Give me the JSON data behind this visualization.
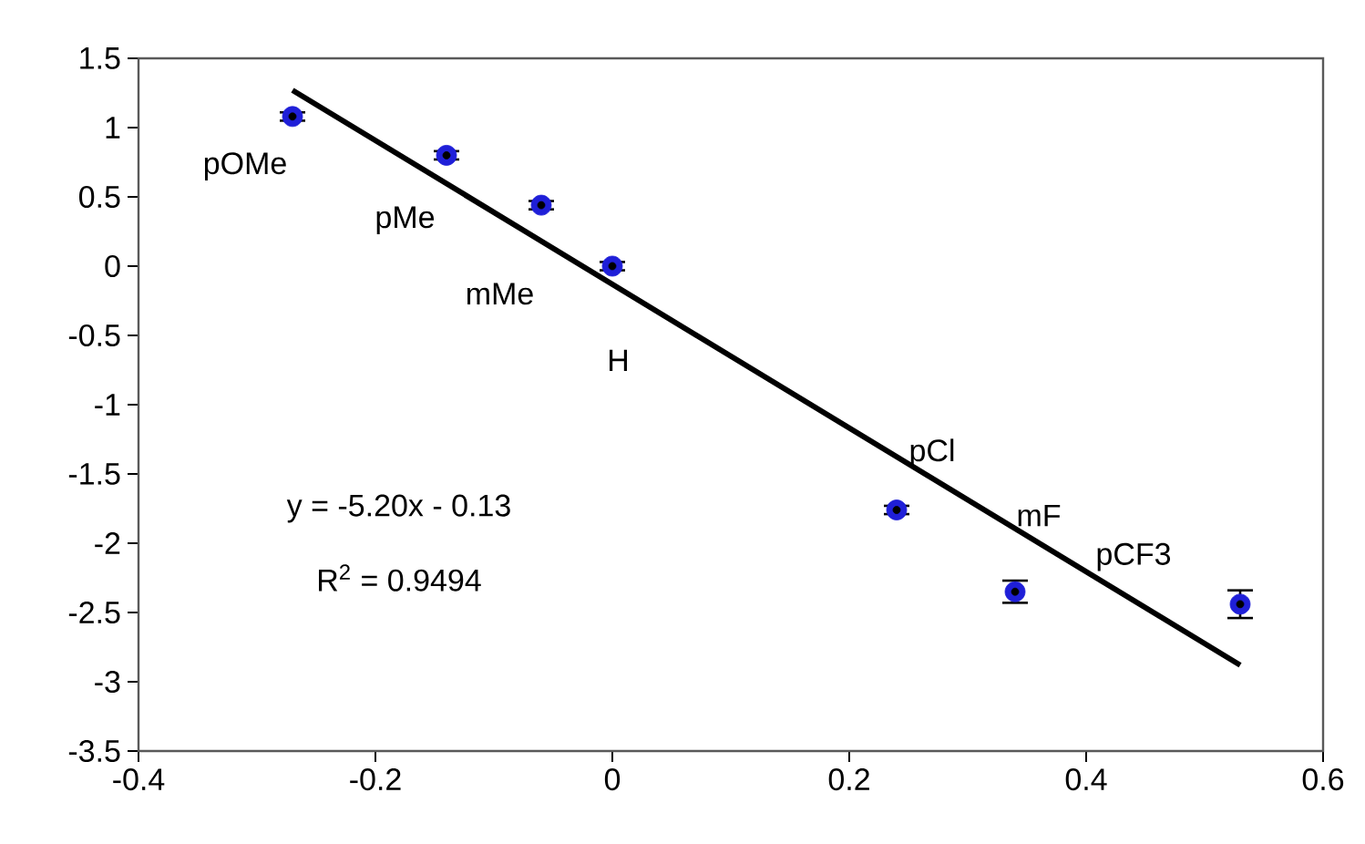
{
  "chart_data": {
    "type": "scatter",
    "grid": false,
    "xlim": [
      -0.4,
      0.6
    ],
    "xticks": [
      -0.4,
      -0.2,
      0,
      0.2,
      0.4,
      0.6
    ],
    "ylim": [
      -3.5,
      1.5
    ],
    "yticks": [
      -3.5,
      -3,
      -2.5,
      -2,
      -1.5,
      -1,
      -0.5,
      0,
      0.5,
      1,
      1.5
    ],
    "series": [
      {
        "color": "#1f1fd8",
        "marker": "circle",
        "x": [
          -0.27,
          -0.14,
          -0.06,
          0,
          0.24,
          0.34,
          0.53
        ],
        "values": [
          1.08,
          0.8,
          0.44,
          0,
          -1.76,
          -2.35,
          -2.44
        ],
        "errors": [
          0.03,
          0.03,
          0.03,
          0.03,
          0.03,
          0.08,
          0.1
        ]
      },
      {
        "type": "line",
        "color": "#000000",
        "marker": "none",
        "x": [
          -0.27,
          0.53
        ],
        "values": [
          1.27,
          -2.88
        ]
      }
    ],
    "annotations": [
      "pOMe",
      "pMe",
      "mMe",
      "H",
      "pCl",
      "mF",
      "pCF3",
      "y = -5.20x - 0.13",
      "R$^{2}$ = 0.9494"
    ]
  }
}
